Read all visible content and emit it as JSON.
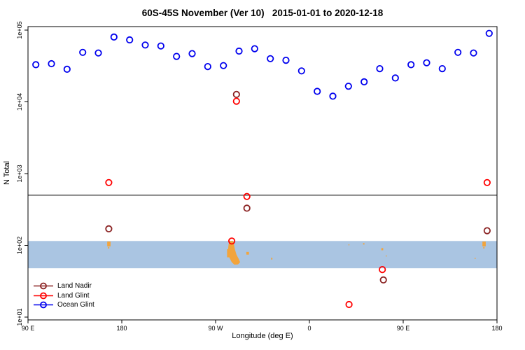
{
  "title": "60S-45S November (Ver 10)   2015-01-01 to 2020-12-18",
  "axes": {
    "x": {
      "label": "Longitude (deg E)",
      "range": [
        90,
        540
      ],
      "ticks": [
        {
          "lon": 90,
          "label": "90 E"
        },
        {
          "lon": 180,
          "label": "180"
        },
        {
          "lon": 270,
          "label": "90 W"
        },
        {
          "lon": 360,
          "label": "0"
        },
        {
          "lon": 450,
          "label": "90 E"
        },
        {
          "lon": 540,
          "label": "180"
        }
      ]
    },
    "y": {
      "label": "N Total",
      "scale": "log10",
      "range": [
        10,
        100000
      ],
      "ticks": [
        {
          "value": 10,
          "label": "1e+01"
        },
        {
          "value": 100,
          "label": "1e+02"
        },
        {
          "value": 1000,
          "label": "1e+03"
        },
        {
          "value": 10000,
          "label": "1e+04"
        },
        {
          "value": 100000,
          "label": "1e+05"
        }
      ]
    }
  },
  "legend": {
    "items": [
      {
        "label": "Land Nadir"
      },
      {
        "label": "Land Glint"
      },
      {
        "label": "Ocean Glint"
      }
    ]
  },
  "chart_data": {
    "type": "scatter",
    "title": "60S-45S November (Ver 10)   2015-01-01 to 2020-12-18",
    "xlabel": "Longitude (deg E)",
    "ylabel": "N Total",
    "marker": "open-circle",
    "reference_line": {
      "n": 500,
      "color": "#000000"
    },
    "series": [
      {
        "name": "Land Nadir",
        "color": "#8B2323",
        "points": [
          {
            "lon": 167.5,
            "n": 170
          },
          {
            "lon": 290,
            "n": 12700
          },
          {
            "lon": 300,
            "n": 330
          },
          {
            "lon": 431,
            "n": 33
          },
          {
            "lon": 530.5,
            "n": 160
          }
        ]
      },
      {
        "name": "Land Glint",
        "color": "#FF0000",
        "points": [
          {
            "lon": 167.5,
            "n": 750
          },
          {
            "lon": 285.5,
            "n": 115
          },
          {
            "lon": 290,
            "n": 10200
          },
          {
            "lon": 300,
            "n": 480
          },
          {
            "lon": 398,
            "n": 15
          },
          {
            "lon": 430,
            "n": 46
          },
          {
            "lon": 530.5,
            "n": 750
          }
        ]
      },
      {
        "name": "Ocean Glint",
        "color": "#0000EE",
        "points": [
          {
            "lon": 97.5,
            "n": 33000
          },
          {
            "lon": 112.5,
            "n": 34000
          },
          {
            "lon": 127.5,
            "n": 28500
          },
          {
            "lon": 142.5,
            "n": 49000
          },
          {
            "lon": 157.5,
            "n": 48000
          },
          {
            "lon": 172.5,
            "n": 80000
          },
          {
            "lon": 187.5,
            "n": 73000
          },
          {
            "lon": 202.5,
            "n": 62000
          },
          {
            "lon": 217.5,
            "n": 60000
          },
          {
            "lon": 232.5,
            "n": 43000
          },
          {
            "lon": 247.5,
            "n": 47000
          },
          {
            "lon": 262.5,
            "n": 31000
          },
          {
            "lon": 277.5,
            "n": 32000
          },
          {
            "lon": 292.5,
            "n": 51000
          },
          {
            "lon": 307.5,
            "n": 55000
          },
          {
            "lon": 322.5,
            "n": 40000
          },
          {
            "lon": 337.5,
            "n": 38000
          },
          {
            "lon": 352.5,
            "n": 27000
          },
          {
            "lon": 367.5,
            "n": 14000
          },
          {
            "lon": 382.5,
            "n": 12000
          },
          {
            "lon": 397.5,
            "n": 16500
          },
          {
            "lon": 412.5,
            "n": 19000
          },
          {
            "lon": 427.5,
            "n": 29000
          },
          {
            "lon": 442.5,
            "n": 21500
          },
          {
            "lon": 457.5,
            "n": 33000
          },
          {
            "lon": 472.5,
            "n": 35000
          },
          {
            "lon": 487.5,
            "n": 29000
          },
          {
            "lon": 502.5,
            "n": 49000
          },
          {
            "lon": 517.5,
            "n": 48000
          },
          {
            "lon": 532.5,
            "n": 90000
          }
        ]
      }
    ],
    "map_band": {
      "description": "latitude strip 45S-60S world map",
      "lat_top": -45,
      "lat_bottom": -60,
      "top_n": 115,
      "bottom_n": 48,
      "ocean_color": "#AAC5E2",
      "land_color": "#F2A43C",
      "land_polygon": [
        [
          283.5,
          0.0
        ],
        [
          287,
          0.0
        ],
        [
          287.5,
          0.1
        ],
        [
          288.5,
          0.3
        ],
        [
          290,
          0.5
        ],
        [
          292.5,
          0.68
        ],
        [
          293.5,
          0.78
        ],
        [
          291.5,
          0.86
        ],
        [
          288,
          0.87
        ],
        [
          285.5,
          0.78
        ],
        [
          283,
          0.6
        ],
        [
          281.8,
          0.35
        ],
        [
          282.5,
          0.12
        ]
      ],
      "land_rects": [
        {
          "name": "nz-south",
          "lon0": 166,
          "lon1": 169.2,
          "t0": 0.02,
          "t1": 0.2
        },
        {
          "name": "nz-stewart",
          "lon0": 166.8,
          "lon1": 168,
          "t0": 0.22,
          "t1": 0.28
        },
        {
          "name": "chile-fjords",
          "lon0": 281,
          "lon1": 283,
          "t0": 0.3,
          "t1": 0.6
        },
        {
          "name": "falklands",
          "lon0": 299.5,
          "lon1": 302,
          "t0": 0.4,
          "t1": 0.5
        },
        {
          "name": "south-georgia",
          "lon0": 323.2,
          "lon1": 324.5,
          "t0": 0.62,
          "t1": 0.68
        },
        {
          "name": "prince-edward",
          "lon0": 397.5,
          "lon1": 398.3,
          "t0": 0.12,
          "t1": 0.16
        },
        {
          "name": "crozet",
          "lon0": 411.5,
          "lon1": 412.8,
          "t0": 0.08,
          "t1": 0.13
        },
        {
          "name": "kerguelen",
          "lon0": 429,
          "lon1": 430.8,
          "t0": 0.26,
          "t1": 0.34
        },
        {
          "name": "heard",
          "lon0": 433.3,
          "lon1": 434.1,
          "t0": 0.53,
          "t1": 0.57
        },
        {
          "name": "macquarie",
          "lon0": 518.6,
          "lon1": 519.2,
          "t0": 0.62,
          "t1": 0.66
        },
        {
          "name": "nz-south-wrapped",
          "lon0": 526,
          "lon1": 529.2,
          "t0": 0.02,
          "t1": 0.2
        },
        {
          "name": "nz-stewart-wrapped",
          "lon0": 526.8,
          "lon1": 528,
          "t0": 0.22,
          "t1": 0.28
        }
      ]
    }
  }
}
